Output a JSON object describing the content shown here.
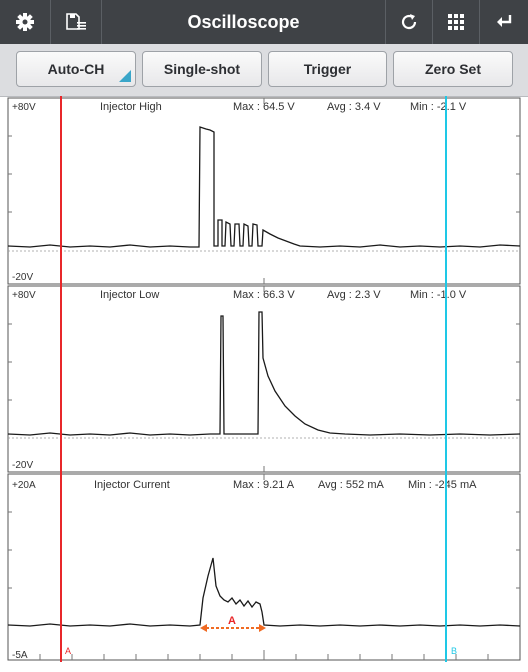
{
  "window": {
    "title": "Oscilloscope"
  },
  "titlebar": {
    "icons": [
      "gear-icon",
      "save-list-icon",
      "refresh-icon",
      "grid-icon",
      "back-icon"
    ]
  },
  "toolbar": {
    "auto_ch": "Auto-CH",
    "single_shot": "Single-shot",
    "trigger": "Trigger",
    "zero_set": "Zero Set"
  },
  "colors": {
    "cursor_a": "#e8272a",
    "cursor_b": "#1ec8e6",
    "trace": "#1a1a1a",
    "accent": "#3aa6c9"
  },
  "panels": [
    {
      "name": "Injector High",
      "top_scale": "+80V",
      "bottom_scale": "-20V",
      "max": "Max : 64.5 V",
      "avg": "Avg : 3.4 V",
      "min": "Min : -2.1 V"
    },
    {
      "name": "Injector Low",
      "top_scale": "+80V",
      "bottom_scale": "-20V",
      "max": "Max : 66.3 V",
      "avg": "Avg : 2.3 V",
      "min": "Min : -1.0 V"
    },
    {
      "name": "Injector Current",
      "top_scale": "+20A",
      "bottom_scale": "-5A",
      "max": "Max : 9.21 A",
      "avg": "Avg : 552 mA",
      "min": "Min : -245 mA"
    }
  ],
  "cursors": {
    "a_label": "A",
    "b_label": "B",
    "measure_label": "A"
  }
}
